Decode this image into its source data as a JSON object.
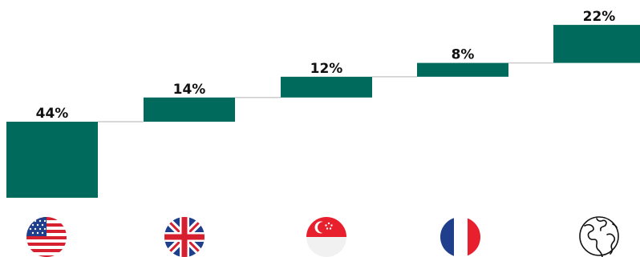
{
  "chart_data": {
    "type": "waterfall",
    "categories": [
      "United States",
      "United Kingdom",
      "Singapore",
      "France",
      "Rest of world"
    ],
    "values": [
      44,
      14,
      12,
      8,
      22
    ],
    "labels": [
      "44%",
      "14%",
      "12%",
      "8%",
      "22%"
    ],
    "unit": "%",
    "title": "",
    "xlabel": "",
    "ylabel": "",
    "ylim": [
      0,
      100
    ],
    "grid": false,
    "legend": "none",
    "colors": {
      "bar": "#006B5C",
      "connector": "#CCCCCC"
    }
  },
  "icons": [
    "us-flag-icon",
    "uk-flag-icon",
    "singapore-flag-icon",
    "france-flag-icon",
    "globe-icon"
  ]
}
